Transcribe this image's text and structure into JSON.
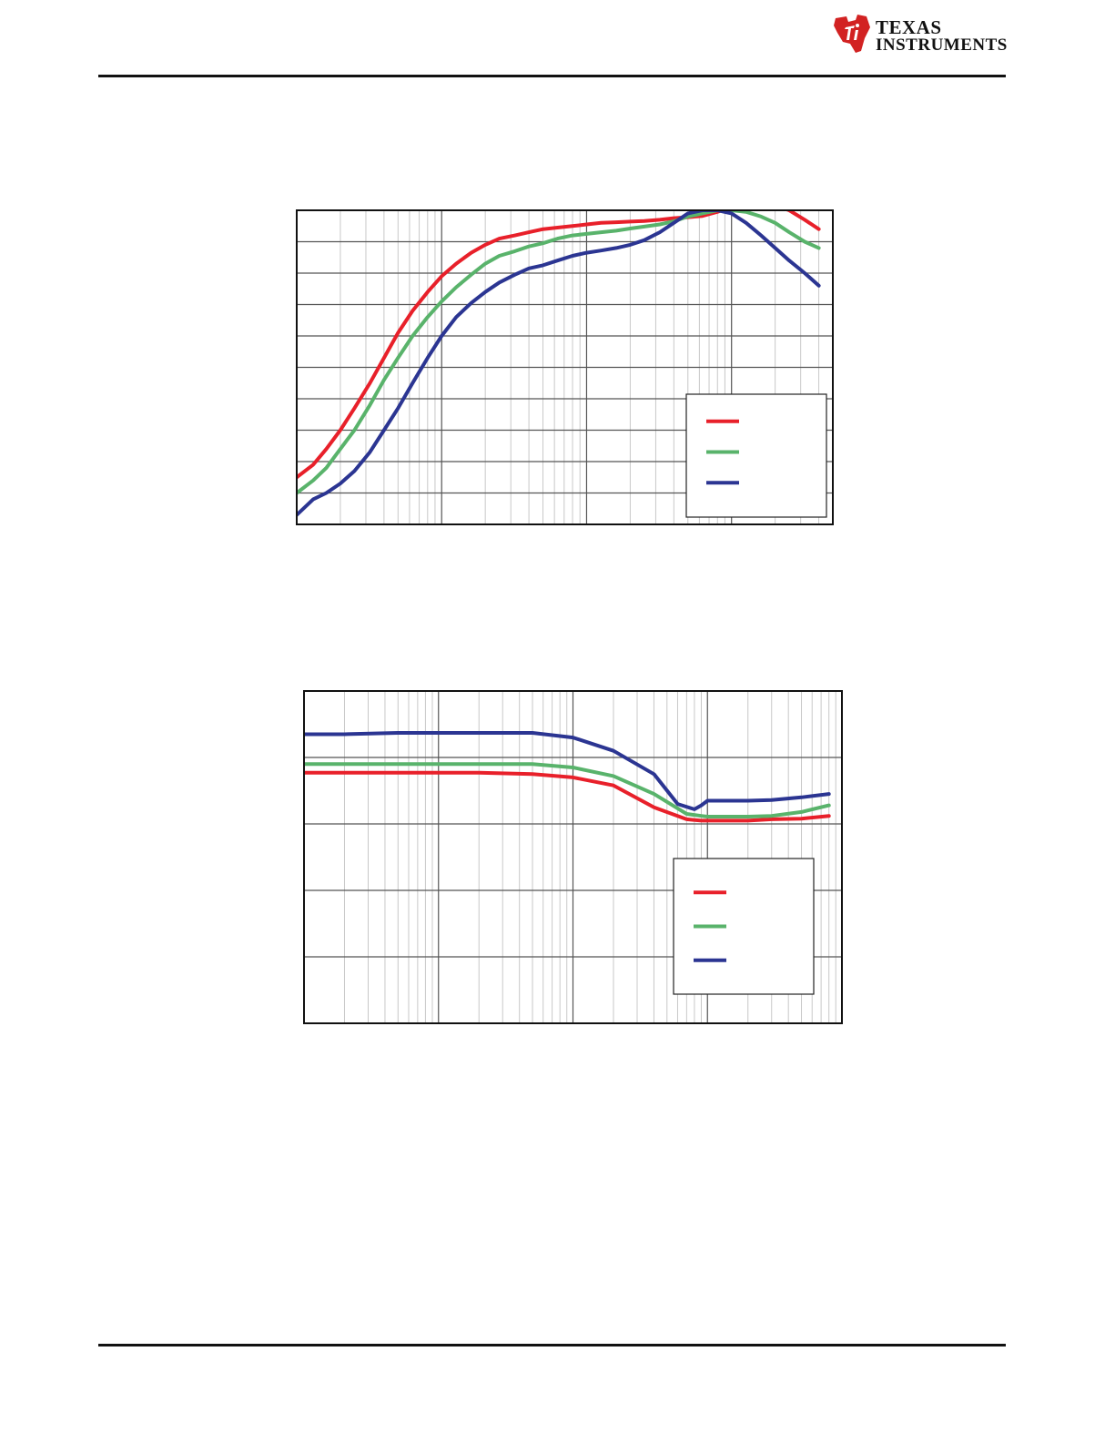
{
  "header": {
    "brand_line1": "TEXAS",
    "brand_line2": "INSTRUMENTS"
  },
  "colors": {
    "red": "#e8202a",
    "green": "#59b36b",
    "blue": "#2b3592",
    "grid": "#c8c8c8",
    "major_grid": "#555555",
    "frame": "#111111"
  },
  "chart_data": [
    {
      "type": "line",
      "x_scale": "log",
      "xlim": [
        1,
        5000
      ],
      "ylim": [
        0,
        10
      ],
      "grid": true,
      "legend_placement": "bottom-right",
      "series": [
        {
          "color": "red",
          "x": [
            1,
            1.3,
            1.6,
            2,
            2.5,
            3.2,
            4,
            5,
            6.3,
            8,
            10,
            12.6,
            16,
            20,
            25,
            32,
            40,
            50,
            63,
            80,
            100,
            126,
            160,
            200,
            250,
            320,
            400,
            500,
            630,
            800,
            1000,
            1260,
            1600,
            2000,
            2500,
            3200,
            4000
          ],
          "y": [
            1.5,
            1.9,
            2.4,
            3.0,
            3.7,
            4.5,
            5.3,
            6.1,
            6.8,
            7.4,
            7.9,
            8.3,
            8.65,
            8.9,
            9.1,
            9.2,
            9.3,
            9.4,
            9.45,
            9.5,
            9.55,
            9.6,
            9.62,
            9.64,
            9.66,
            9.7,
            9.75,
            9.78,
            9.82,
            9.95,
            10.1,
            10.2,
            10.2,
            10.15,
            10.0,
            9.7,
            9.4
          ]
        },
        {
          "color": "green",
          "x": [
            1,
            1.3,
            1.6,
            2,
            2.5,
            3.2,
            4,
            5,
            6.3,
            8,
            10,
            12.6,
            16,
            20,
            25,
            32,
            40,
            50,
            63,
            80,
            100,
            126,
            160,
            200,
            250,
            320,
            400,
            500,
            630,
            800,
            1000,
            1260,
            1600,
            2000,
            2500,
            3200,
            4000
          ],
          "y": [
            1.0,
            1.4,
            1.8,
            2.4,
            3.0,
            3.8,
            4.6,
            5.3,
            6.0,
            6.6,
            7.1,
            7.55,
            7.95,
            8.3,
            8.55,
            8.7,
            8.85,
            8.95,
            9.1,
            9.2,
            9.25,
            9.3,
            9.35,
            9.42,
            9.48,
            9.55,
            9.65,
            9.8,
            9.9,
            10.0,
            10.0,
            9.95,
            9.8,
            9.6,
            9.3,
            9.0,
            8.8
          ]
        },
        {
          "color": "blue",
          "x": [
            1,
            1.3,
            1.6,
            2,
            2.5,
            3.2,
            4,
            5,
            6.3,
            8,
            10,
            12.6,
            16,
            20,
            25,
            32,
            40,
            50,
            63,
            80,
            100,
            126,
            160,
            200,
            250,
            320,
            400,
            500,
            630,
            800,
            1000,
            1260,
            1600,
            2000,
            2500,
            3200,
            4000
          ],
          "y": [
            0.3,
            0.8,
            1.0,
            1.3,
            1.7,
            2.3,
            3.0,
            3.7,
            4.5,
            5.3,
            6.0,
            6.6,
            7.05,
            7.4,
            7.7,
            7.95,
            8.15,
            8.25,
            8.4,
            8.55,
            8.65,
            8.72,
            8.8,
            8.9,
            9.05,
            9.3,
            9.6,
            9.9,
            10.0,
            10.0,
            9.9,
            9.6,
            9.2,
            8.8,
            8.4,
            8.0,
            7.6
          ]
        }
      ]
    },
    {
      "type": "line",
      "x_scale": "log",
      "xlim": [
        1,
        10000
      ],
      "ylim": [
        0,
        5
      ],
      "grid": true,
      "legend_placement": "bottom-right",
      "series": [
        {
          "color": "red",
          "x": [
            1,
            2,
            5,
            10,
            20,
            50,
            100,
            200,
            400,
            700,
            900,
            1000,
            1500,
            2000,
            3000,
            5000,
            8000
          ],
          "y": [
            3.77,
            3.77,
            3.77,
            3.77,
            3.77,
            3.75,
            3.7,
            3.58,
            3.25,
            3.07,
            3.05,
            3.05,
            3.05,
            3.05,
            3.07,
            3.08,
            3.12
          ]
        },
        {
          "color": "green",
          "x": [
            1,
            2,
            5,
            10,
            20,
            50,
            100,
            200,
            400,
            700,
            900,
            1000,
            1500,
            2000,
            3000,
            5000,
            8000
          ],
          "y": [
            3.9,
            3.9,
            3.9,
            3.9,
            3.9,
            3.9,
            3.85,
            3.72,
            3.45,
            3.15,
            3.12,
            3.11,
            3.11,
            3.11,
            3.12,
            3.18,
            3.28
          ]
        },
        {
          "color": "blue",
          "x": [
            1,
            2,
            5,
            10,
            20,
            50,
            100,
            200,
            400,
            600,
            800,
            900,
            1000,
            1300,
            2000,
            3000,
            5000,
            8000
          ],
          "y": [
            4.35,
            4.35,
            4.37,
            4.37,
            4.37,
            4.37,
            4.3,
            4.1,
            3.75,
            3.3,
            3.22,
            3.28,
            3.35,
            3.35,
            3.35,
            3.36,
            3.4,
            3.45
          ]
        }
      ]
    }
  ]
}
